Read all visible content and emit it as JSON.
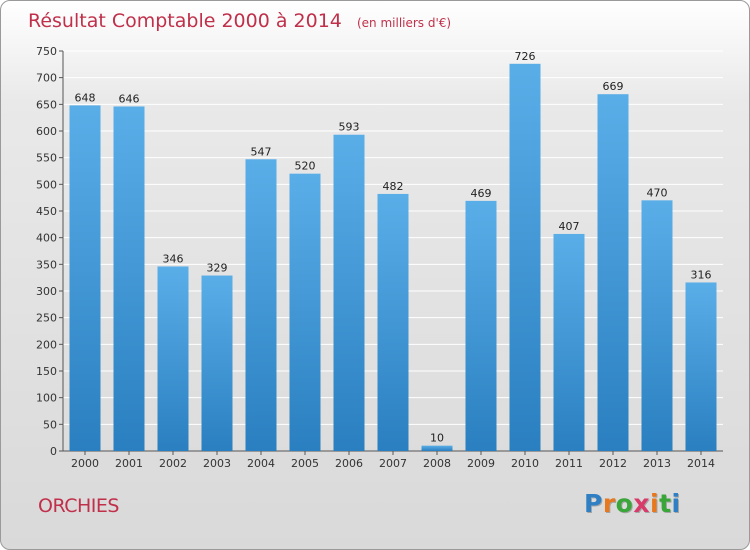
{
  "chart_data": {
    "type": "bar",
    "title": "Résultat Comptable 2000 à 2014",
    "subtitle": "(en milliers d'€)",
    "categories": [
      "2000",
      "2001",
      "2002",
      "2003",
      "2004",
      "2005",
      "2006",
      "2007",
      "2008",
      "2009",
      "2010",
      "2011",
      "2012",
      "2013",
      "2014"
    ],
    "values": [
      648,
      646,
      346,
      329,
      547,
      520,
      593,
      482,
      10,
      469,
      726,
      407,
      669,
      470,
      316
    ],
    "ylim": [
      0,
      750
    ],
    "yticks": [
      0,
      50,
      100,
      150,
      200,
      250,
      300,
      350,
      400,
      450,
      500,
      550,
      600,
      650,
      700,
      750
    ],
    "grid": true,
    "colors": {
      "bar_top": "#5aaee8",
      "bar_bottom": "#2a7fc0",
      "title": "#c0304a"
    }
  },
  "location": "ORCHIES",
  "logo": {
    "text": "Proxiti",
    "letters": [
      "P",
      "r",
      "o",
      "x",
      "i",
      "t",
      "i"
    ],
    "colors": [
      "#2e7fc4",
      "#e8781e",
      "#3aa63a",
      "#d83a6a",
      "#e8781e",
      "#3aa63a",
      "#2e7fc4"
    ]
  }
}
